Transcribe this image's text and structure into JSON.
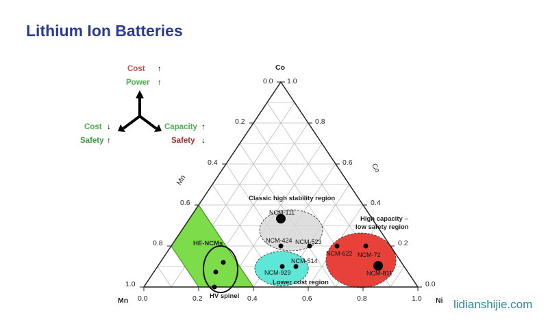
{
  "title": "Lithium Ion Batteries",
  "watermark": "lidianshijie.com",
  "legend": {
    "top": [
      {
        "label": "Cost",
        "arrow": "↑",
        "color": "#c0504d"
      },
      {
        "label": "Power",
        "arrow": "↑",
        "color": "#4caf50"
      }
    ],
    "left": [
      {
        "label": "Cost",
        "arrow": "↓",
        "color": "#4caf50"
      },
      {
        "label": "Safety",
        "arrow": "↑",
        "color": "#3e9e3e"
      }
    ],
    "right": [
      {
        "label": "Capacity",
        "arrow": "↑",
        "color": "#4caf50"
      },
      {
        "label": "Safety",
        "arrow": "↓",
        "color": "#a03030"
      }
    ]
  },
  "axes": {
    "co_top": "Co",
    "co_side": "Co",
    "mn_side": "Mn",
    "mn_corner": "Mn",
    "ni_corner": "Ni",
    "apex_left": "0.0",
    "apex_right": "1.0",
    "left_ticks": [
      "0.2",
      "0.4",
      "0.6",
      "0.8",
      "1.0"
    ],
    "right_ticks": [
      "0.8",
      "0.6",
      "0.4",
      "0.2",
      "0.0"
    ],
    "base_ticks": [
      "0.0",
      "0.2",
      "0.4",
      "0.6",
      "0.8",
      "1.0"
    ]
  },
  "regions": {
    "classic": "Classic high stability region",
    "high_capacity_1": "High capacity –",
    "high_capacity_2": "low safety region",
    "lower_cost": "Lower cost region",
    "he_ncm": "HE-NCMs",
    "hv_spinel": "HV spinel"
  },
  "colors": {
    "green": "#7ddc4a",
    "gray": "#d8d8d8",
    "cyan": "#5ee6d6",
    "red": "#e8413a"
  },
  "points": [
    {
      "label": "NCM-111",
      "big": true
    },
    {
      "label": "NCM-424",
      "big": false
    },
    {
      "label": "NCM-523",
      "big": false
    },
    {
      "label": "NCM-514",
      "big": false
    },
    {
      "label": "NCM-929",
      "big": false
    },
    {
      "label": "NCM-622",
      "big": false
    },
    {
      "label": "NCM-72",
      "big": false
    },
    {
      "label": "NCM-811",
      "big": true
    }
  ]
}
